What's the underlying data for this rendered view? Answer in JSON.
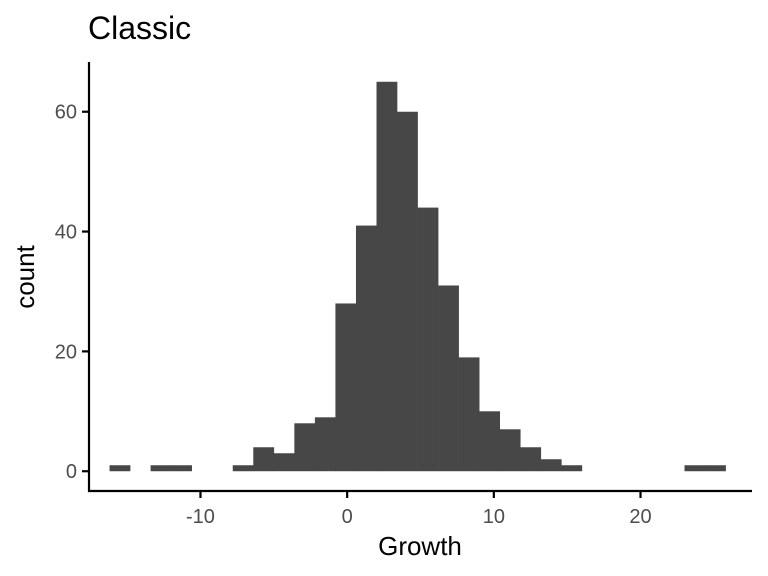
{
  "chart_data": {
    "type": "bar",
    "subtype": "histogram",
    "title": "Classic",
    "xlabel": "Growth",
    "ylabel": "count",
    "xlim": [
      -17.6,
      27.6
    ],
    "ylim": [
      -3.3,
      68.3
    ],
    "x_ticks": [
      -10,
      0,
      10,
      20
    ],
    "y_ticks": [
      0,
      20,
      40,
      60
    ],
    "grid": false,
    "bar_color": "#474747",
    "bins": [
      {
        "x0": -16.2,
        "x1": -14.8,
        "count": 1
      },
      {
        "x0": -14.8,
        "x1": -13.4,
        "count": 0
      },
      {
        "x0": -13.4,
        "x1": -12.0,
        "count": 1
      },
      {
        "x0": -12.0,
        "x1": -10.6,
        "count": 1
      },
      {
        "x0": -10.6,
        "x1": -9.2,
        "count": 0
      },
      {
        "x0": -9.2,
        "x1": -7.8,
        "count": 0
      },
      {
        "x0": -7.8,
        "x1": -6.4,
        "count": 1
      },
      {
        "x0": -6.4,
        "x1": -5.0,
        "count": 4
      },
      {
        "x0": -5.0,
        "x1": -3.6,
        "count": 3
      },
      {
        "x0": -3.6,
        "x1": -2.2,
        "count": 8
      },
      {
        "x0": -2.2,
        "x1": -0.8,
        "count": 9
      },
      {
        "x0": -0.8,
        "x1": 0.6,
        "count": 28
      },
      {
        "x0": 0.6,
        "x1": 2.0,
        "count": 41
      },
      {
        "x0": 2.0,
        "x1": 3.4,
        "count": 65
      },
      {
        "x0": 3.4,
        "x1": 4.8,
        "count": 60
      },
      {
        "x0": 4.8,
        "x1": 6.2,
        "count": 44
      },
      {
        "x0": 6.2,
        "x1": 7.6,
        "count": 31
      },
      {
        "x0": 7.6,
        "x1": 9.0,
        "count": 19
      },
      {
        "x0": 9.0,
        "x1": 10.4,
        "count": 10
      },
      {
        "x0": 10.4,
        "x1": 11.8,
        "count": 7
      },
      {
        "x0": 11.8,
        "x1": 13.2,
        "count": 4
      },
      {
        "x0": 13.2,
        "x1": 14.6,
        "count": 2
      },
      {
        "x0": 14.6,
        "x1": 16.0,
        "count": 1
      },
      {
        "x0": 16.0,
        "x1": 17.4,
        "count": 0
      },
      {
        "x0": 17.4,
        "x1": 18.8,
        "count": 0
      },
      {
        "x0": 18.8,
        "x1": 20.2,
        "count": 0
      },
      {
        "x0": 20.2,
        "x1": 21.6,
        "count": 0
      },
      {
        "x0": 21.6,
        "x1": 23.0,
        "count": 0
      },
      {
        "x0": 23.0,
        "x1": 24.4,
        "count": 1
      },
      {
        "x0": 24.4,
        "x1": 25.8,
        "count": 1
      }
    ]
  }
}
